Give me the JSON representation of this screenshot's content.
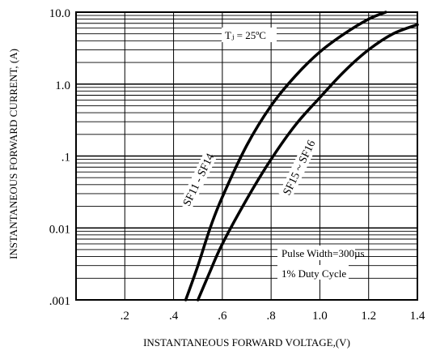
{
  "chart_data": {
    "type": "line",
    "xlabel": "INSTANTANEOUS FORWARD VOLTAGE,(V)",
    "ylabel": "INSTANTANEOUS FORWARD CURRENT, (A)",
    "xlim": [
      0,
      1.4
    ],
    "ylim": [
      0.001,
      10.0
    ],
    "y_scale": "log",
    "grid": true,
    "x_ticks": [
      {
        "value": 0.2,
        "label": ".2"
      },
      {
        "value": 0.4,
        "label": ".4"
      },
      {
        "value": 0.6,
        "label": ".6"
      },
      {
        "value": 0.8,
        "label": ".8"
      },
      {
        "value": 1.0,
        "label": "1.0"
      },
      {
        "value": 1.2,
        "label": "1.2"
      },
      {
        "value": 1.4,
        "label": "1.4"
      }
    ],
    "y_ticks": [
      {
        "value": 0.001,
        "label": ".001"
      },
      {
        "value": 0.01,
        "label": "0.01"
      },
      {
        "value": 0.1,
        "label": ".1"
      },
      {
        "value": 1.0,
        "label": "1.0"
      },
      {
        "value": 10.0,
        "label": "10.0"
      }
    ],
    "series": [
      {
        "name": "SF11 - SF14",
        "x": [
          0.45,
          0.5,
          0.55,
          0.6,
          0.7,
          0.8,
          0.9,
          1.0,
          1.1,
          1.2,
          1.27
        ],
        "y": [
          0.001,
          0.003,
          0.01,
          0.027,
          0.14,
          0.5,
          1.3,
          2.8,
          5.0,
          8.0,
          10.0
        ]
      },
      {
        "name": "SF15 ~ SF16",
        "x": [
          0.5,
          0.55,
          0.6,
          0.7,
          0.8,
          0.9,
          1.0,
          1.1,
          1.2,
          1.3,
          1.4
        ],
        "y": [
          0.001,
          0.0025,
          0.006,
          0.025,
          0.09,
          0.27,
          0.65,
          1.5,
          3.0,
          5.0,
          6.7
        ]
      }
    ],
    "annotations": {
      "temperature": "Tⱼ = 25ºC",
      "pulse_width": "Pulse Width=300µs",
      "duty_cycle": "1% Duty Cycle"
    }
  },
  "colors": {
    "line": "#000000",
    "grid": "#000000",
    "background": "#ffffff"
  }
}
